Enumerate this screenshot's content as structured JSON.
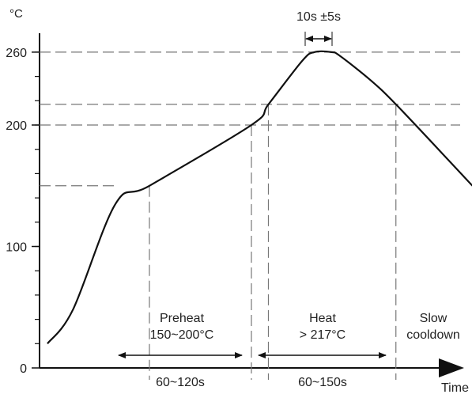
{
  "chart_data": {
    "type": "line",
    "y_unit": "°C",
    "xlabel": "Time",
    "ylim": [
      0,
      260
    ],
    "y_ticks": [
      {
        "value": 0,
        "label": "0"
      },
      {
        "value": 100,
        "label": "100"
      },
      {
        "value": 200,
        "label": "200"
      },
      {
        "value": 260,
        "label": "260"
      }
    ],
    "profile": [
      {
        "t": 0,
        "temp": 20
      },
      {
        "t": 15,
        "temp": 48
      },
      {
        "t": 40,
        "temp": 135
      },
      {
        "t": 60,
        "temp": 150
      },
      {
        "t": 120,
        "temp": 200
      },
      {
        "t": 130,
        "temp": 217
      },
      {
        "t": 150,
        "temp": 253
      },
      {
        "t": 157,
        "temp": 260
      },
      {
        "t": 167,
        "temp": 260
      },
      {
        "t": 172,
        "temp": 257
      },
      {
        "t": 190,
        "temp": 237
      },
      {
        "t": 205,
        "temp": 217
      },
      {
        "t": 240,
        "temp": 165
      },
      {
        "t": 250,
        "temp": 150
      }
    ],
    "reference_levels": [
      150,
      200,
      217,
      260
    ],
    "annotations": {
      "peak_time": "10s ±5s",
      "preheat_label": "Preheat",
      "preheat_range": "150~200°C",
      "preheat_duration": "60~120s",
      "heat_label": "Heat",
      "heat_threshold": "> 217°C",
      "heat_duration": "60~150s",
      "cooldown_label": "Slow",
      "cooldown_label2": "cooldown"
    }
  }
}
